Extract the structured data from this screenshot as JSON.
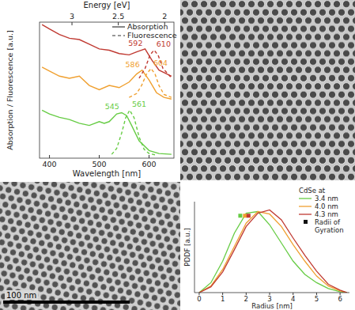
{
  "chart_data": [
    {
      "type": "line",
      "xlabel": "Wavelength [nm]",
      "ylabel": "Absorption / Fluorescence [a.u.]",
      "x2label": "Energy [eV]",
      "xlim": [
        380,
        650
      ],
      "xticks": [
        400,
        500,
        600
      ],
      "x2lim": [
        3.35,
        1.9
      ],
      "x2ticks": [
        3,
        2.5,
        2
      ],
      "ylim": [
        0,
        3.2
      ],
      "tick_labels": "x",
      "legend": "top-right",
      "legend_entries": [
        {
          "label": "Absorption",
          "line_style": "solid"
        },
        {
          "label": "Fluorescence",
          "line_style": "dashed"
        }
      ],
      "series": [
        {
          "color": "#66cc44",
          "line_style": "solid",
          "x": [
            385,
            400,
            420,
            440,
            460,
            480,
            500,
            510,
            520,
            535,
            545,
            555,
            565,
            580,
            600,
            620,
            645
          ],
          "values": [
            1.13,
            1.04,
            0.96,
            0.91,
            0.82,
            0.77,
            0.86,
            0.82,
            0.86,
            1.04,
            1.07,
            1.0,
            0.77,
            0.41,
            0.18,
            0.11,
            0.09
          ]
        },
        {
          "color": "#66cc44",
          "line_style": "dashed",
          "x": [
            525,
            535,
            545,
            553,
            561,
            570,
            580,
            590,
            600,
            615
          ],
          "values": [
            0.09,
            0.23,
            0.59,
            0.95,
            1.13,
            0.95,
            0.5,
            0.21,
            0.11,
            0.07
          ]
        },
        {
          "color": "#f0a030",
          "line_style": "solid",
          "x": [
            385,
            400,
            420,
            440,
            460,
            480,
            500,
            520,
            540,
            560,
            575,
            586,
            600,
            615,
            630,
            645
          ],
          "values": [
            2.14,
            2.05,
            1.93,
            1.88,
            1.93,
            1.71,
            1.61,
            1.71,
            1.66,
            1.79,
            1.98,
            2.07,
            1.84,
            1.54,
            1.43,
            1.39
          ]
        },
        {
          "color": "#f0a030",
          "line_style": "dashed",
          "x": [
            560,
            575,
            585,
            595,
            604,
            612,
            620,
            630,
            645
          ],
          "values": [
            1.43,
            1.52,
            1.71,
            1.98,
            2.11,
            1.98,
            1.71,
            1.5,
            1.43
          ]
        },
        {
          "color": "#c03a32",
          "line_style": "solid",
          "x": [
            385,
            400,
            420,
            440,
            460,
            480,
            500,
            520,
            540,
            560,
            575,
            592,
            605,
            620,
            645
          ],
          "values": [
            3.14,
            3.04,
            2.91,
            2.82,
            2.79,
            2.68,
            2.57,
            2.54,
            2.46,
            2.43,
            2.5,
            2.57,
            2.32,
            2.07,
            1.93
          ]
        },
        {
          "color": "#c03a32",
          "line_style": "dashed",
          "x": [
            580,
            592,
            602,
            610,
            618,
            628,
            645
          ],
          "values": [
            1.88,
            2.11,
            2.43,
            2.54,
            2.43,
            2.11,
            1.89
          ]
        }
      ],
      "annotations": [
        {
          "text": "545",
          "x": 545,
          "series": 0
        },
        {
          "text": "561",
          "x": 561,
          "series": 1
        },
        {
          "text": "586",
          "x": 586,
          "series": 2
        },
        {
          "text": "604",
          "x": 604,
          "series": 3
        },
        {
          "text": "592",
          "x": 592,
          "series": 4
        },
        {
          "text": "610",
          "x": 610,
          "series": 5
        }
      ]
    },
    {
      "type": "line",
      "xlabel": "Radius [nm]",
      "ylabel": "PDDF [a.u.]",
      "xlim": [
        -0.2,
        6.4
      ],
      "xticks": [
        0,
        1,
        2,
        3,
        4,
        5,
        6
      ],
      "ylim": [
        0,
        1.1
      ],
      "tick_labels": "x",
      "legend": "top-right",
      "legend_title": "CdSe at",
      "x": [
        0,
        0.5,
        1,
        1.5,
        2,
        2.5,
        3,
        3.5,
        4,
        4.5,
        5,
        5.5,
        6,
        6.3
      ],
      "series": [
        {
          "name": "3.4 nm",
          "color": "#66cc44",
          "values": [
            0,
            0.12,
            0.38,
            0.72,
            0.96,
            0.98,
            0.82,
            0.6,
            0.38,
            0.22,
            0.12,
            0.05,
            0.01,
            0
          ]
        },
        {
          "name": "4.0 nm",
          "color": "#f0a030",
          "values": [
            0,
            0.08,
            0.28,
            0.56,
            0.84,
            0.98,
            0.95,
            0.8,
            0.58,
            0.38,
            0.2,
            0.08,
            0.02,
            0
          ]
        },
        {
          "name": "4.3 nm",
          "color": "#c03a32",
          "values": [
            0,
            0.07,
            0.25,
            0.52,
            0.8,
            0.96,
            1.0,
            0.88,
            0.66,
            0.45,
            0.26,
            0.1,
            0.03,
            0
          ]
        },
        {
          "name": "Radii of Gyration",
          "type": "scatter",
          "marker": "square",
          "colors": [
            "#66cc44",
            "#f0a030",
            "#c03a32"
          ],
          "x": [
            1.75,
            1.95,
            2.1
          ],
          "values": [
            0.93,
            0.93,
            0.93
          ]
        }
      ]
    }
  ],
  "images": {
    "scale_bar": "100 nm"
  }
}
